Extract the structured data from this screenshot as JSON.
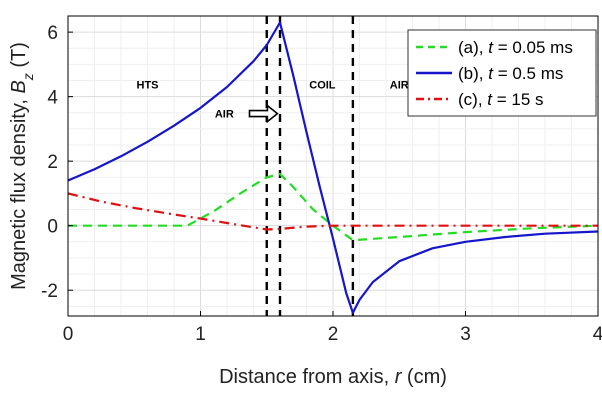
{
  "chart_data": {
    "type": "line",
    "xlabel_prefix": "Distance from axis, ",
    "xlabel_var": "r",
    "xlabel_suffix": " (cm)",
    "ylabel_prefix": "Magnetic flux density, ",
    "ylabel_var": "B",
    "ylabel_sub": "z",
    "ylabel_suffix": " (T)",
    "xlim": [
      0,
      4
    ],
    "ylim": [
      -2.8,
      6.5
    ],
    "xticks": [
      0,
      1,
      2,
      3,
      4
    ],
    "yticks": [
      -2,
      0,
      2,
      4,
      6
    ],
    "grid": true,
    "legend_position": "top-right",
    "boundaries": [
      1.5,
      1.6,
      2.15
    ],
    "region_labels": [
      {
        "text": "HTS",
        "x": 0.6,
        "y": 4.25
      },
      {
        "text": "AIR",
        "x": 1.18,
        "y": 3.35
      },
      {
        "text": "COIL",
        "x": 1.92,
        "y": 4.25
      },
      {
        "text": "AIR",
        "x": 2.5,
        "y": 4.25
      }
    ],
    "arrow": {
      "x_from": 1.37,
      "x_to": 1.58,
      "y": 3.35
    },
    "series": [
      {
        "name_prefix": "(a), ",
        "name_var": "t",
        "name_suffix": " = 0.05 ms",
        "color": "#22dd22",
        "dash": "dashed",
        "x": [
          0,
          0.5,
          0.9,
          1.1,
          1.3,
          1.5,
          1.6,
          1.7,
          1.85,
          2.0,
          2.15,
          2.5,
          3.0,
          3.5,
          4.0
        ],
        "y": [
          0,
          0,
          0,
          0.45,
          1.0,
          1.5,
          1.6,
          1.2,
          0.5,
          0,
          -0.45,
          -0.35,
          -0.2,
          -0.08,
          0
        ]
      },
      {
        "name_prefix": "(b), ",
        "name_var": "t",
        "name_suffix": " = 0.5 ms",
        "color": "#1515cc",
        "dash": "solid",
        "x": [
          0,
          0.2,
          0.4,
          0.6,
          0.8,
          1.0,
          1.2,
          1.4,
          1.5,
          1.6,
          1.7,
          1.8,
          1.9,
          2.0,
          2.1,
          2.15,
          2.2,
          2.3,
          2.5,
          2.75,
          3.0,
          3.3,
          3.6,
          4.0
        ],
        "y": [
          1.4,
          1.75,
          2.15,
          2.6,
          3.1,
          3.65,
          4.3,
          5.1,
          5.6,
          6.3,
          4.65,
          2.9,
          1.2,
          -0.4,
          -2.1,
          -2.7,
          -2.3,
          -1.75,
          -1.1,
          -0.7,
          -0.5,
          -0.35,
          -0.25,
          -0.18
        ]
      },
      {
        "name_prefix": "(c), ",
        "name_var": "t",
        "name_suffix": " = 15 s",
        "color": "#e01010",
        "dash": "dashdot",
        "x": [
          0,
          0.25,
          0.5,
          0.75,
          1.0,
          1.25,
          1.5,
          1.6,
          1.8,
          2.0,
          2.15,
          2.5,
          3.0,
          3.5,
          4.0
        ],
        "y": [
          1.0,
          0.75,
          0.55,
          0.38,
          0.22,
          0.05,
          -0.12,
          -0.1,
          -0.03,
          0,
          0,
          0,
          0,
          0,
          0
        ]
      }
    ]
  }
}
